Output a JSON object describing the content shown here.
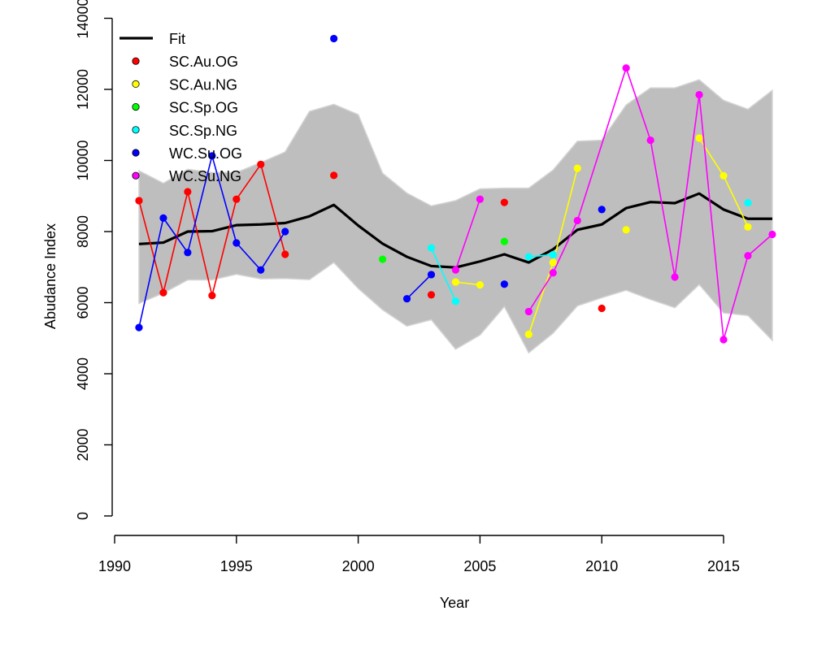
{
  "chart_data": {
    "type": "line",
    "title": "",
    "xlabel": "Year",
    "ylabel": "Abudance Index",
    "xlim": [
      1990,
      2017
    ],
    "ylim": [
      0,
      14000
    ],
    "x_ticks": [
      1990,
      1995,
      2000,
      2005,
      2010,
      2015
    ],
    "y_ticks": [
      0,
      2000,
      4000,
      6000,
      8000,
      10000,
      12000,
      14000
    ],
    "grid": false,
    "legend_position": "top-left",
    "fit": {
      "name": "Fit",
      "color": "#000000",
      "years": [
        1991,
        1992,
        1993,
        1994,
        1995,
        1996,
        1997,
        1998,
        1999,
        2000,
        2001,
        2002,
        2003,
        2004,
        2005,
        2006,
        2007,
        2008,
        2009,
        2010,
        2011,
        2012,
        2013,
        2014,
        2015,
        2016,
        2017
      ],
      "values": [
        7650,
        7690,
        8000,
        8010,
        8180,
        8200,
        8240,
        8430,
        8750,
        8170,
        7660,
        7290,
        7030,
        6990,
        7160,
        7360,
        7130,
        7500,
        8050,
        8200,
        8660,
        8830,
        8800,
        9070,
        8620,
        8360,
        8360
      ]
    },
    "confidence_band": {
      "color": "#bebebe",
      "years": [
        1991,
        1992,
        1993,
        1994,
        1995,
        1996,
        1997,
        1998,
        1999,
        2000,
        2001,
        2002,
        2003,
        2004,
        2005,
        2006,
        2007,
        2008,
        2009,
        2010,
        2011,
        2012,
        2013,
        2014,
        2015,
        2016,
        2017
      ],
      "upper": [
        9710,
        9360,
        9750,
        9660,
        9660,
        9940,
        10240,
        11380,
        11580,
        11290,
        9640,
        9080,
        8720,
        8870,
        9200,
        9220,
        9220,
        9730,
        10540,
        10570,
        11560,
        12040,
        12040,
        12270,
        11690,
        11440,
        11970
      ],
      "lower": [
        5980,
        6270,
        6640,
        6640,
        6800,
        6670,
        6680,
        6650,
        7130,
        6400,
        5800,
        5340,
        5520,
        4690,
        5090,
        5890,
        4590,
        5140,
        5910,
        6140,
        6350,
        6090,
        5860,
        6510,
        5710,
        5640,
        4940
      ]
    },
    "series": [
      {
        "name": "SC.Au.OG",
        "color": "#ff0000",
        "x": [
          1991,
          1992,
          1993,
          1994,
          1995,
          1996,
          1997,
          1999,
          2003,
          2006,
          2010
        ],
        "y": [
          8870,
          6280,
          9120,
          6200,
          8910,
          9890,
          7360,
          9580,
          6220,
          8820,
          5840
        ],
        "connected_segments": [
          [
            0,
            6
          ]
        ]
      },
      {
        "name": "SC.Au.NG",
        "color": "#ffff00",
        "x": [
          2004,
          2005,
          2007,
          2008,
          2009,
          2011,
          2014,
          2015,
          2016
        ],
        "y": [
          6580,
          6500,
          5110,
          7130,
          9780,
          8050,
          10630,
          9570,
          8130
        ],
        "connected_segments": [
          [
            0,
            1
          ],
          [
            2,
            4
          ],
          [
            6,
            8
          ]
        ]
      },
      {
        "name": "SC.Sp.OG",
        "color": "#00ff00",
        "x": [
          2001,
          2006
        ],
        "y": [
          7220,
          7720
        ],
        "connected_segments": []
      },
      {
        "name": "SC.Sp.NG",
        "color": "#00ffff",
        "x": [
          2003,
          2004,
          2007,
          2008,
          2016
        ],
        "y": [
          7540,
          6040,
          7290,
          7350,
          8810
        ],
        "connected_segments": [
          [
            0,
            1
          ],
          [
            2,
            3
          ]
        ]
      },
      {
        "name": "WC.Su.OG",
        "color": "#0000ff",
        "x": [
          1991,
          1992,
          1993,
          1994,
          1995,
          1996,
          1997,
          1999,
          2002,
          2003,
          2006,
          2010
        ],
        "y": [
          5300,
          8380,
          7410,
          10130,
          7680,
          6920,
          8000,
          13430,
          6110,
          6790,
          6520,
          8620
        ],
        "connected_segments": [
          [
            0,
            6
          ],
          [
            8,
            9
          ]
        ]
      },
      {
        "name": "WC.Su.NG",
        "color": "#ff00ff",
        "x": [
          2004,
          2005,
          2007,
          2008,
          2009,
          2011,
          2012,
          2013,
          2014,
          2015,
          2016,
          2017
        ],
        "y": [
          6920,
          8910,
          5750,
          6840,
          8310,
          12600,
          10570,
          6720,
          11850,
          4960,
          7320,
          7920
        ],
        "connected_segments": [
          [
            0,
            1
          ],
          [
            2,
            11
          ]
        ]
      }
    ]
  }
}
